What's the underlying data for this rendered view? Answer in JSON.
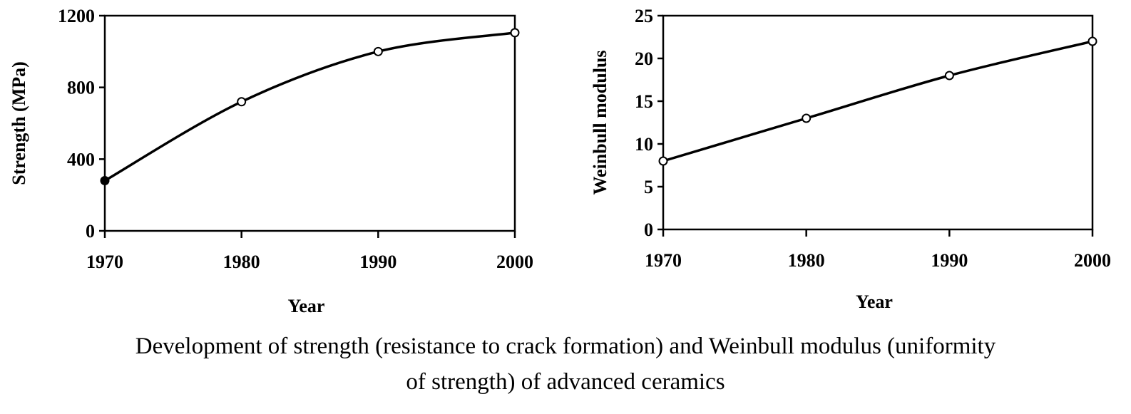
{
  "chart_data": [
    {
      "type": "line",
      "x": [
        1970,
        1980,
        1990,
        2000
      ],
      "series": [
        {
          "values": [
            280,
            720,
            1000,
            1105
          ]
        }
      ],
      "xlabel": "Year",
      "ylabel": "Strength (MPa)",
      "xlim": [
        1970,
        2000
      ],
      "ylim": [
        0,
        1200
      ],
      "xticks": [
        "1970",
        "1980",
        "1990",
        "2000"
      ],
      "yticks": [
        "0",
        "400",
        "800",
        "1200"
      ],
      "grid": false,
      "line_color": "#000000"
    },
    {
      "type": "line",
      "x": [
        1970,
        1980,
        1990,
        2000
      ],
      "series": [
        {
          "values": [
            8,
            13,
            18,
            22
          ]
        }
      ],
      "xlabel": "Year",
      "ylabel": "Weinbull modulus",
      "xlim": [
        1970,
        2000
      ],
      "ylim": [
        0,
        25
      ],
      "xticks": [
        "1970",
        "1980",
        "1990",
        "2000"
      ],
      "yticks": [
        "0",
        "5",
        "10",
        "15",
        "20",
        "25"
      ],
      "grid": false,
      "line_color": "#000000"
    }
  ],
  "caption": {
    "line1": "Development of strength (resistance to crack formation) and Weinbull modulus (uniformity",
    "line2": "of strength) of advanced ceramics"
  }
}
